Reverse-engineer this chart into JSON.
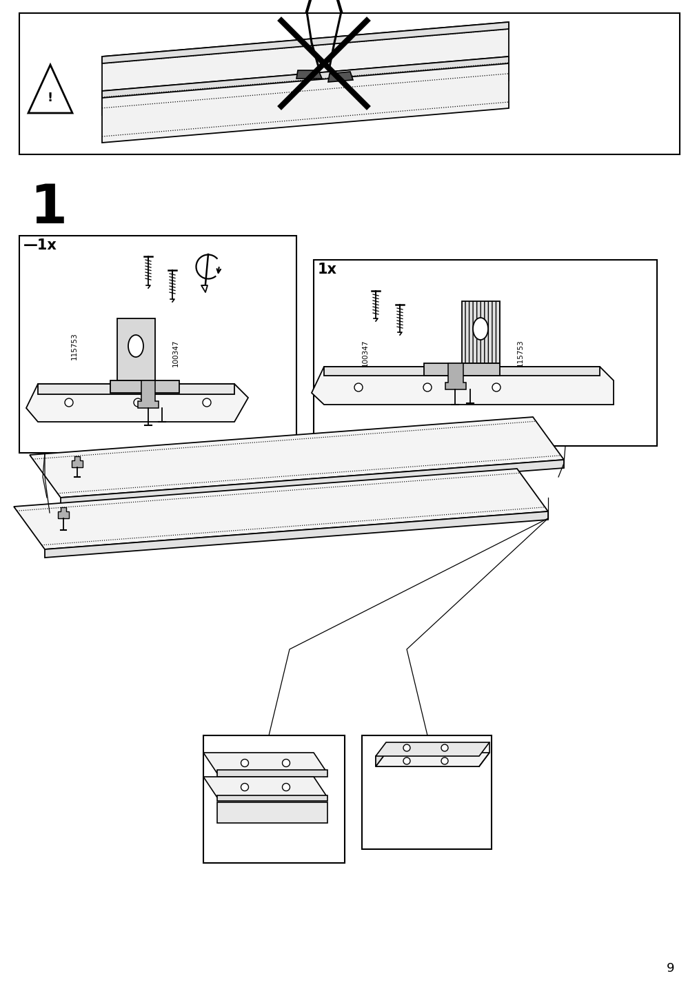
{
  "page_number": "9",
  "background_color": "#ffffff",
  "line_color": "#000000",
  "step_number": "1",
  "step_number_fontsize": 56,
  "page_number_fontsize": 13,
  "quantity_label_fontsize": 15,
  "part_number_fontsize": 7.5,
  "figsize": [
    10.12,
    14.32
  ],
  "dpi": 100
}
